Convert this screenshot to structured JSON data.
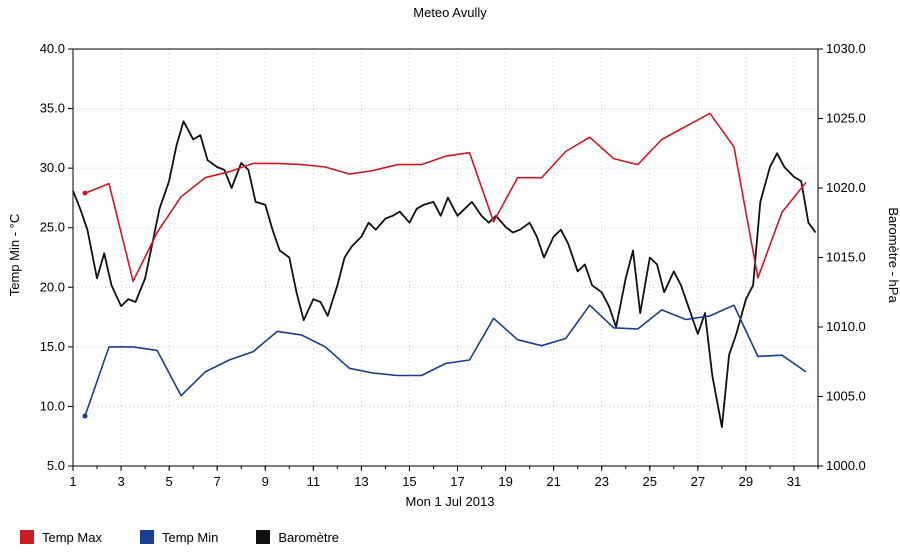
{
  "chart_data": {
    "type": "line",
    "title": "Meteo  Avully",
    "xlabel": "Mon 1 Jul 2013",
    "ylabel_left": "Temp Min - °C",
    "ylabel_right": "Baromètre - hPa",
    "x_ticks": [
      "1",
      "3",
      "5",
      "7",
      "9",
      "11",
      "13",
      "15",
      "17",
      "19",
      "21",
      "23",
      "25",
      "27",
      "29",
      "31"
    ],
    "xlim": [
      1,
      32
    ],
    "ylim_left": [
      5,
      40
    ],
    "ylim_right": [
      1000,
      1030
    ],
    "y_ticks_left": [
      "5.0",
      "10.0",
      "15.0",
      "20.0",
      "25.0",
      "30.0",
      "35.0",
      "40.0"
    ],
    "y_ticks_right": [
      "1000.0",
      "1005.0",
      "1010.0",
      "1015.0",
      "1020.0",
      "1025.0",
      "1030.0"
    ],
    "grid": true,
    "legend_position": "bottom-left",
    "series": [
      {
        "name": "Temp Max",
        "color": "#cc1b24",
        "axis": "left",
        "x": [
          1.5,
          2.5,
          3.5,
          4.5,
          5.5,
          6.5,
          7.5,
          8.5,
          9.5,
          10.5,
          11.5,
          12.5,
          13.5,
          14.5,
          15.5,
          16.5,
          17.5,
          18.5,
          19.5,
          20.5,
          21.5,
          22.5,
          23.5,
          24.5,
          25.5,
          26.5,
          27.5,
          28.5,
          29.5,
          30.5,
          31.5
        ],
        "values": [
          27.9,
          28.7,
          20.5,
          24.6,
          27.6,
          29.2,
          29.7,
          30.4,
          30.4,
          30.3,
          30.1,
          29.5,
          29.8,
          30.3,
          30.3,
          31.0,
          31.3,
          25.5,
          29.2,
          29.2,
          31.4,
          32.6,
          30.8,
          30.3,
          32.4,
          33.5,
          34.6,
          31.8,
          20.8,
          26.3,
          28.8
        ]
      },
      {
        "name": "Temp Min",
        "color": "#1a3e94",
        "axis": "left",
        "x": [
          1.5,
          2.5,
          3.5,
          4.5,
          5.5,
          6.5,
          7.5,
          8.5,
          9.5,
          10.5,
          11.5,
          12.5,
          13.5,
          14.5,
          15.5,
          16.5,
          17.5,
          18.5,
          19.5,
          20.5,
          21.5,
          22.5,
          23.5,
          24.5,
          25.5,
          26.5,
          27.5,
          28.5,
          29.5,
          30.5,
          31.5
        ],
        "values": [
          9.2,
          15.0,
          15.0,
          14.7,
          10.9,
          12.9,
          13.9,
          14.6,
          16.3,
          16.0,
          15.0,
          13.2,
          12.8,
          12.6,
          12.6,
          13.6,
          13.9,
          17.4,
          15.6,
          15.1,
          15.7,
          18.5,
          16.6,
          16.5,
          18.1,
          17.3,
          17.6,
          18.5,
          14.2,
          14.3,
          12.9
        ]
      },
      {
        "name": "Baromètre",
        "color": "#111111",
        "axis": "right",
        "x": [
          1.0,
          1.3,
          1.6,
          2.0,
          2.3,
          2.6,
          3.0,
          3.3,
          3.6,
          4.0,
          4.3,
          4.6,
          5.0,
          5.3,
          5.6,
          6.0,
          6.3,
          6.6,
          7.0,
          7.3,
          7.6,
          8.0,
          8.3,
          8.6,
          9.0,
          9.3,
          9.6,
          10.0,
          10.3,
          10.6,
          11.0,
          11.3,
          11.6,
          12.0,
          12.3,
          12.6,
          13.0,
          13.3,
          13.6,
          14.0,
          14.3,
          14.6,
          15.0,
          15.3,
          15.6,
          16.0,
          16.3,
          16.6,
          17.0,
          17.3,
          17.6,
          18.0,
          18.3,
          18.6,
          19.0,
          19.3,
          19.6,
          20.0,
          20.3,
          20.6,
          21.0,
          21.3,
          21.6,
          22.0,
          22.3,
          22.6,
          23.0,
          23.3,
          23.6,
          24.0,
          24.3,
          24.6,
          25.0,
          25.3,
          25.6,
          26.0,
          26.3,
          26.6,
          27.0,
          27.3,
          27.6,
          28.0,
          28.3,
          28.6,
          29.0,
          29.3,
          29.6,
          30.0,
          30.3,
          30.6,
          31.0,
          31.3,
          31.6,
          31.9
        ],
        "values": [
          1019.8,
          1018.5,
          1017.0,
          1013.5,
          1015.3,
          1013.0,
          1011.5,
          1012.0,
          1011.8,
          1013.5,
          1016.0,
          1018.5,
          1020.5,
          1023.0,
          1024.8,
          1023.5,
          1023.8,
          1022.0,
          1021.5,
          1021.3,
          1020.0,
          1021.8,
          1021.3,
          1019.0,
          1018.8,
          1017.0,
          1015.5,
          1015.0,
          1012.5,
          1010.5,
          1012.0,
          1011.8,
          1010.8,
          1013.0,
          1015.0,
          1015.8,
          1016.5,
          1017.5,
          1017.0,
          1017.8,
          1018.0,
          1018.3,
          1017.5,
          1018.5,
          1018.8,
          1019.0,
          1018.0,
          1019.3,
          1018.0,
          1018.5,
          1019.0,
          1018.0,
          1017.5,
          1018.0,
          1017.2,
          1016.8,
          1017.0,
          1017.5,
          1016.5,
          1015.0,
          1016.5,
          1017.0,
          1016.0,
          1014.0,
          1014.5,
          1013.0,
          1012.5,
          1011.5,
          1010.0,
          1013.5,
          1015.5,
          1011.0,
          1015.0,
          1014.5,
          1012.5,
          1014.0,
          1013.0,
          1011.5,
          1009.5,
          1011.0,
          1006.5,
          1002.8,
          1008.0,
          1009.5,
          1012.0,
          1013.0,
          1019.0,
          1021.5,
          1022.5,
          1021.5,
          1020.8,
          1020.5,
          1017.5,
          1016.8
        ]
      }
    ]
  }
}
